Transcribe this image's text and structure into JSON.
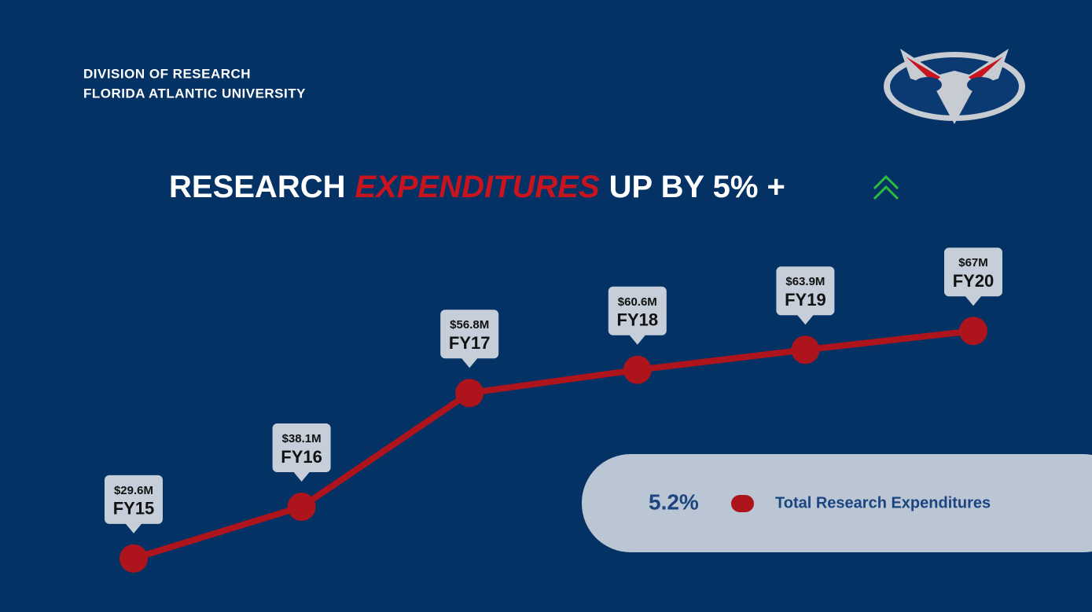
{
  "header": {
    "line1": "DIVISION OF RESEARCH",
    "line2": "FLORIDA ATLANTIC UNIVERSITY"
  },
  "chart_data": {
    "type": "line",
    "title": {
      "lead": "RESEARCH",
      "highlight": "EXPENDITURES",
      "tail": "UP BY 5% +"
    },
    "categories": [
      "FY15",
      "FY16",
      "FY17",
      "FY18",
      "FY19",
      "FY20"
    ],
    "series": [
      {
        "name": "Total Research Expenditures",
        "color": "#ad141c",
        "values": [
          29.6,
          38.1,
          56.8,
          60.6,
          63.9,
          67
        ],
        "value_labels": [
          "$29.6M",
          "$38.1M",
          "$56.8M",
          "$60.6M",
          "$63.9M",
          "$67M"
        ]
      }
    ],
    "ylim": [
      25,
      70
    ],
    "annotation": "5.2%",
    "highlight_color": "#c8141e",
    "arrow_color": "#2bbd3c"
  }
}
